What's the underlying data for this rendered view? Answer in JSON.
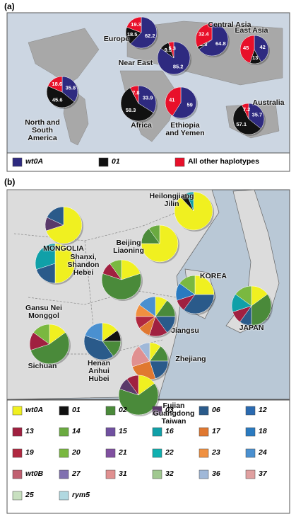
{
  "chart_data": [
    {
      "type": "pie",
      "panel_label": "(a)",
      "categories": [
        "Europe",
        "Central Asia",
        "Near East",
        "East Asia",
        "North and South America",
        "Africa",
        "Ethiopia and Yemen",
        "Australia"
      ],
      "series": [
        {
          "name": "wt0A",
          "color": "#2e2a80",
          "values": [
            62.2,
            64.8,
            85.2,
            42,
            35.8,
            33.9,
            59,
            35.7
          ]
        },
        {
          "name": "01",
          "color": "#111111",
          "values": [
            18.5,
            2.8,
            9.5,
            13,
            45.6,
            58.3,
            0,
            57.1
          ]
        },
        {
          "name": "All other haplotypes",
          "color": "#e8102a",
          "values": [
            19.3,
            32.4,
            5.3,
            45,
            18.6,
            7.8,
            41,
            7.2
          ]
        }
      ]
    },
    {
      "type": "pie",
      "panel_label": "(b)",
      "categories": [
        "MONGOLIA",
        "Heilongjiang Jilin",
        "Beijing Liaoning",
        "Shanxi, Shandon Hebei",
        "Gansu Nei Monggol",
        "KOREA",
        "JAPAN",
        "Sichuan",
        "Henan Anhui Hubei",
        "Jiangsu",
        "Zhejiang",
        "Fujian Guangdong Taiwan"
      ],
      "series": [
        {
          "name": "wt0A",
          "color": "#f0f020",
          "values": [
            70,
            88,
            75,
            20,
            50,
            25,
            15,
            15,
            15,
            10,
            10,
            15
          ]
        },
        {
          "name": "01",
          "color": "#111111",
          "values": [
            0,
            6,
            0,
            0,
            0,
            0,
            0,
            0,
            10,
            0,
            0,
            0
          ]
        },
        {
          "name": "02",
          "color": "#4a8a3a",
          "values": [
            0,
            0,
            15,
            60,
            0,
            0,
            35,
            55,
            15,
            15,
            15,
            65
          ]
        },
        {
          "name": "03",
          "color": "#5a3a6a",
          "values": [
            12,
            0,
            0,
            0,
            0,
            0,
            0,
            0,
            0,
            0,
            0,
            10
          ]
        },
        {
          "name": "06",
          "color": "#2a5a8a",
          "values": [
            18,
            0,
            0,
            0,
            20,
            35,
            10,
            0,
            40,
            15,
            20,
            0
          ]
        },
        {
          "name": "12",
          "color": "#2a6ab0",
          "values": [
            0,
            0,
            0,
            0,
            0,
            0,
            0,
            0,
            0,
            0,
            0,
            0
          ]
        },
        {
          "name": "13",
          "color": "#a02040",
          "values": [
            0,
            0,
            0,
            10,
            0,
            10,
            10,
            15,
            0,
            15,
            0,
            10
          ]
        },
        {
          "name": "14",
          "color": "#6aaa40",
          "values": [
            0,
            0,
            10,
            0,
            0,
            0,
            0,
            0,
            0,
            0,
            0,
            0
          ]
        },
        {
          "name": "15",
          "color": "#7050a0",
          "values": [
            0,
            0,
            0,
            0,
            0,
            0,
            0,
            0,
            0,
            0,
            0,
            0
          ]
        },
        {
          "name": "16",
          "color": "#10a0a8",
          "values": [
            0,
            6,
            0,
            0,
            30,
            0,
            15,
            0,
            0,
            0,
            0,
            0
          ]
        },
        {
          "name": "17",
          "color": "#e07830",
          "values": [
            0,
            0,
            0,
            0,
            0,
            0,
            0,
            0,
            0,
            10,
            25,
            0
          ]
        },
        {
          "name": "18",
          "color": "#2a7ac0",
          "values": [
            0,
            0,
            0,
            0,
            0,
            15,
            0,
            0,
            0,
            0,
            0,
            0
          ]
        },
        {
          "name": "19",
          "color": "#b02840",
          "values": [
            0,
            0,
            0,
            0,
            0,
            0,
            0,
            0,
            0,
            10,
            0,
            0
          ]
        },
        {
          "name": "20",
          "color": "#7ab840",
          "values": [
            0,
            0,
            0,
            10,
            0,
            15,
            15,
            15,
            0,
            0,
            0,
            0
          ]
        },
        {
          "name": "21",
          "color": "#8050a0",
          "values": [
            0,
            0,
            0,
            0,
            0,
            0,
            0,
            0,
            0,
            0,
            0,
            0
          ]
        },
        {
          "name": "22",
          "color": "#10b0b0",
          "values": [
            0,
            0,
            0,
            0,
            0,
            0,
            0,
            0,
            0,
            0,
            0,
            0
          ]
        },
        {
          "name": "23",
          "color": "#f09040",
          "values": [
            0,
            0,
            0,
            0,
            0,
            0,
            0,
            0,
            0,
            10,
            0,
            0
          ]
        },
        {
          "name": "24",
          "color": "#4a90d0",
          "values": [
            0,
            0,
            0,
            0,
            0,
            0,
            0,
            0,
            20,
            15,
            0,
            0
          ]
        },
        {
          "name": "wt0B",
          "color": "#c06070",
          "values": [
            0,
            0,
            0,
            0,
            0,
            0,
            0,
            0,
            0,
            0,
            0,
            0
          ]
        },
        {
          "name": "27",
          "color": "#8070b0",
          "values": [
            0,
            0,
            0,
            0,
            0,
            0,
            0,
            0,
            0,
            0,
            0,
            0
          ]
        },
        {
          "name": "31",
          "color": "#e09090",
          "values": [
            0,
            0,
            0,
            0,
            0,
            0,
            0,
            0,
            0,
            0,
            20,
            0
          ]
        },
        {
          "name": "32",
          "color": "#a0c890",
          "values": [
            0,
            0,
            0,
            0,
            0,
            0,
            0,
            0,
            0,
            0,
            0,
            0
          ]
        },
        {
          "name": "36",
          "color": "#a0b8d8",
          "values": [
            0,
            0,
            0,
            0,
            0,
            0,
            0,
            0,
            0,
            0,
            10,
            0
          ]
        },
        {
          "name": "37",
          "color": "#e0a0a0",
          "values": [
            0,
            0,
            0,
            0,
            0,
            0,
            0,
            0,
            0,
            0,
            0,
            0
          ]
        },
        {
          "name": "25",
          "color": "#c8e0c0",
          "values": [
            0,
            0,
            0,
            0,
            0,
            0,
            0,
            0,
            0,
            0,
            0,
            0
          ]
        },
        {
          "name": "rym5",
          "color": "#b0d8e0",
          "values": [
            0,
            0,
            0,
            0,
            0,
            0,
            0,
            0,
            0,
            0,
            0,
            0
          ]
        }
      ]
    }
  ]
}
